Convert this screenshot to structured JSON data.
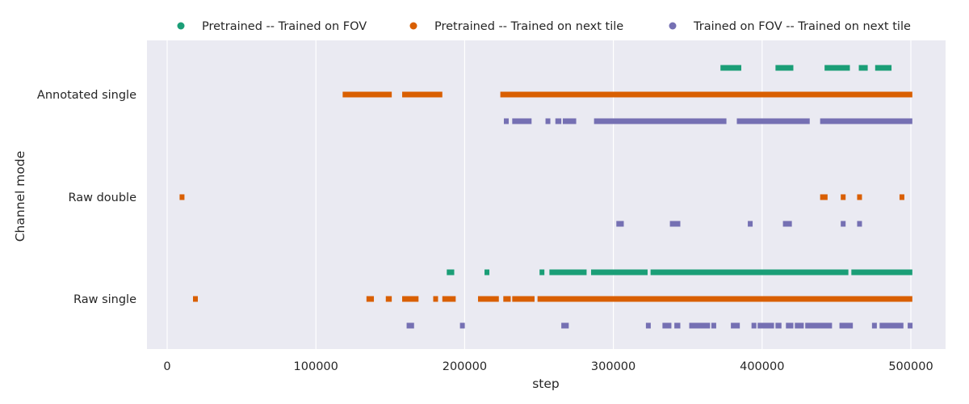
{
  "chart_data": {
    "type": "scatter",
    "xlabel": "step",
    "ylabel": "Channel mode",
    "xlim": [
      -13000,
      524000
    ],
    "xticks": [
      0,
      100000,
      200000,
      300000,
      400000,
      500000
    ],
    "xtick_labels": [
      "0",
      "100000",
      "200000",
      "300000",
      "400000",
      "500000"
    ],
    "categories": [
      "Annotated single",
      "Raw double",
      "Raw single"
    ],
    "grid": true,
    "legend_position": "top",
    "series": [
      {
        "name": "Pretrained -- Trained on FOV",
        "color": "#1b9e77",
        "offset": -1,
        "segments": [
          {
            "category": "Annotated single",
            "ranges": [
              [
                372000,
                386000
              ],
              [
                409000,
                421000
              ],
              [
                442000,
                459000
              ],
              [
                465000,
                471000
              ],
              [
                476000,
                487000
              ]
            ]
          },
          {
            "category": "Raw double",
            "ranges": []
          },
          {
            "category": "Raw single",
            "ranges": [
              [
                188000,
                193000
              ],
              [
                214000,
                216000
              ],
              [
                251000,
                253000
              ],
              [
                257000,
                282000
              ],
              [
                285000,
                323000
              ],
              [
                325000,
                458000
              ],
              [
                460000,
                501000
              ]
            ]
          }
        ]
      },
      {
        "name": "Pretrained -- Trained on next tile",
        "color": "#d95f02",
        "offset": 0,
        "segments": [
          {
            "category": "Annotated single",
            "ranges": [
              [
                118000,
                151000
              ],
              [
                158000,
                185000
              ],
              [
                224000,
                501000
              ]
            ]
          },
          {
            "category": "Raw double",
            "ranges": [
              [
                9500,
                10500
              ],
              [
                439000,
                444000
              ],
              [
                453000,
                456000
              ],
              [
                464000,
                467000
              ],
              [
                493000,
                495000
              ]
            ]
          },
          {
            "category": "Raw single",
            "ranges": [
              [
                18500,
                19500
              ],
              [
                134000,
                139000
              ],
              [
                147000,
                151000
              ],
              [
                158000,
                169000
              ],
              [
                179000,
                182000
              ],
              [
                185000,
                194000
              ],
              [
                209000,
                223000
              ],
              [
                226000,
                231000
              ],
              [
                232000,
                247000
              ],
              [
                249000,
                501000
              ]
            ]
          }
        ]
      },
      {
        "name": "Trained on FOV -- Trained on next tile",
        "color": "#7570b3",
        "offset": 1,
        "segments": [
          {
            "category": "Annotated single",
            "ranges": [
              [
                227000,
                229000
              ],
              [
                232000,
                245000
              ],
              [
                255000,
                257000
              ],
              [
                261000,
                265000
              ],
              [
                266000,
                275000
              ],
              [
                287000,
                376000
              ],
              [
                383000,
                432000
              ],
              [
                439000,
                501000
              ]
            ]
          },
          {
            "category": "Raw double",
            "ranges": [
              [
                302000,
                307000
              ],
              [
                338000,
                345000
              ],
              [
                391000,
                393000
              ],
              [
                414000,
                420000
              ],
              [
                453000,
                456000
              ],
              [
                464000,
                467000
              ]
            ]
          },
          {
            "category": "Raw single",
            "ranges": [
              [
                161000,
                166000
              ],
              [
                197000,
                200000
              ],
              [
                265000,
                270000
              ],
              [
                322000,
                325000
              ],
              [
                333000,
                339000
              ],
              [
                341000,
                345000
              ],
              [
                351000,
                365000
              ],
              [
                366000,
                369000
              ],
              [
                379000,
                385000
              ],
              [
                393000,
                396000
              ],
              [
                397000,
                408000
              ],
              [
                409000,
                413000
              ],
              [
                416000,
                421000
              ],
              [
                422000,
                428000
              ],
              [
                429000,
                447000
              ],
              [
                452000,
                461000
              ],
              [
                474000,
                477000
              ],
              [
                479000,
                495000
              ],
              [
                498000,
                501000
              ]
            ]
          }
        ]
      }
    ]
  }
}
